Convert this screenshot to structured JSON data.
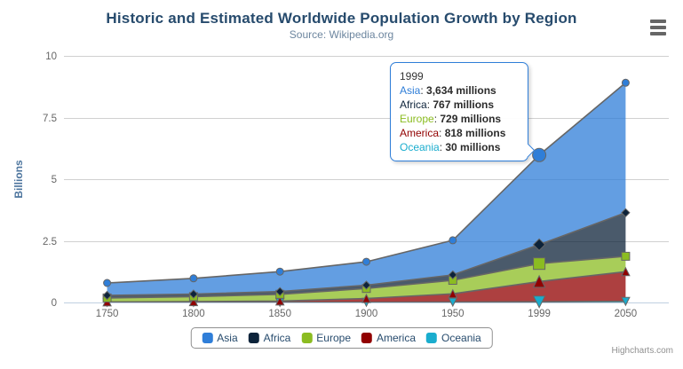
{
  "chart": {
    "title": "Historic and Estimated Worldwide Population Growth by Region",
    "subtitle": "Source: Wikipedia.org",
    "credits": "Highcharts.com"
  },
  "chart_data": {
    "type": "area",
    "stacking": "normal",
    "title": "Historic and Estimated Worldwide Population Growth by Region",
    "subtitle": "Source: Wikipedia.org",
    "categories": [
      "1750",
      "1800",
      "1850",
      "1900",
      "1950",
      "1999",
      "2050"
    ],
    "series": [
      {
        "name": "Asia",
        "color": "#2f7ed8",
        "marker": "circle",
        "values": [
          502,
          635,
          809,
          947,
          1402,
          3634,
          5268
        ]
      },
      {
        "name": "Africa",
        "color": "#0d233a",
        "marker": "diamond",
        "values": [
          106,
          107,
          111,
          133,
          221,
          767,
          1766
        ]
      },
      {
        "name": "Europe",
        "color": "#8bbc21",
        "marker": "square",
        "values": [
          163,
          203,
          276,
          408,
          547,
          729,
          628
        ]
      },
      {
        "name": "America",
        "color": "#910000",
        "marker": "triangle",
        "values": [
          18,
          31,
          54,
          156,
          339,
          818,
          1201
        ]
      },
      {
        "name": "Oceania",
        "color": "#1aadce",
        "marker": "triangle-down",
        "values": [
          2,
          2,
          2,
          6,
          13,
          30,
          46
        ]
      }
    ],
    "values_unit": "millions",
    "ylabel": "Billions",
    "ylim": [
      0,
      10
    ],
    "yticks": [
      0,
      2.5,
      5,
      7.5,
      10
    ],
    "ytick_labels": [
      "0",
      "2.5",
      "5",
      "7.5",
      "10"
    ],
    "grid": true,
    "legend_position": "bottom",
    "hover_index": 5,
    "line_color": "#666666",
    "grid_color": "#d0d0d0",
    "axis_line_color": "#c0d0e0",
    "axis_label_color": "#666666",
    "axis_title_color": "#4d759e"
  },
  "tooltip": {
    "header": "1999",
    "border_color": "#2f7ed8",
    "rows": [
      {
        "name": "Asia",
        "color": "#2f7ed8",
        "value": "3,634 millions"
      },
      {
        "name": "Africa",
        "color": "#0d233a",
        "value": "767 millions"
      },
      {
        "name": "Europe",
        "color": "#8bbc21",
        "value": "729 millions"
      },
      {
        "name": "America",
        "color": "#910000",
        "value": "818 millions"
      },
      {
        "name": "Oceania",
        "color": "#1aadce",
        "value": "30 millions"
      }
    ]
  },
  "legend": {
    "items": [
      {
        "label": "Asia",
        "color": "#2f7ed8"
      },
      {
        "label": "Africa",
        "color": "#0d233a"
      },
      {
        "label": "Europe",
        "color": "#8bbc21"
      },
      {
        "label": "America",
        "color": "#910000"
      },
      {
        "label": "Oceania",
        "color": "#1aadce"
      }
    ]
  },
  "colors": {
    "title": "#274b6d",
    "subtitle": "#6d869f",
    "legend_text": "#274b6d",
    "credits": "#909090",
    "export_icon": "#666666"
  }
}
